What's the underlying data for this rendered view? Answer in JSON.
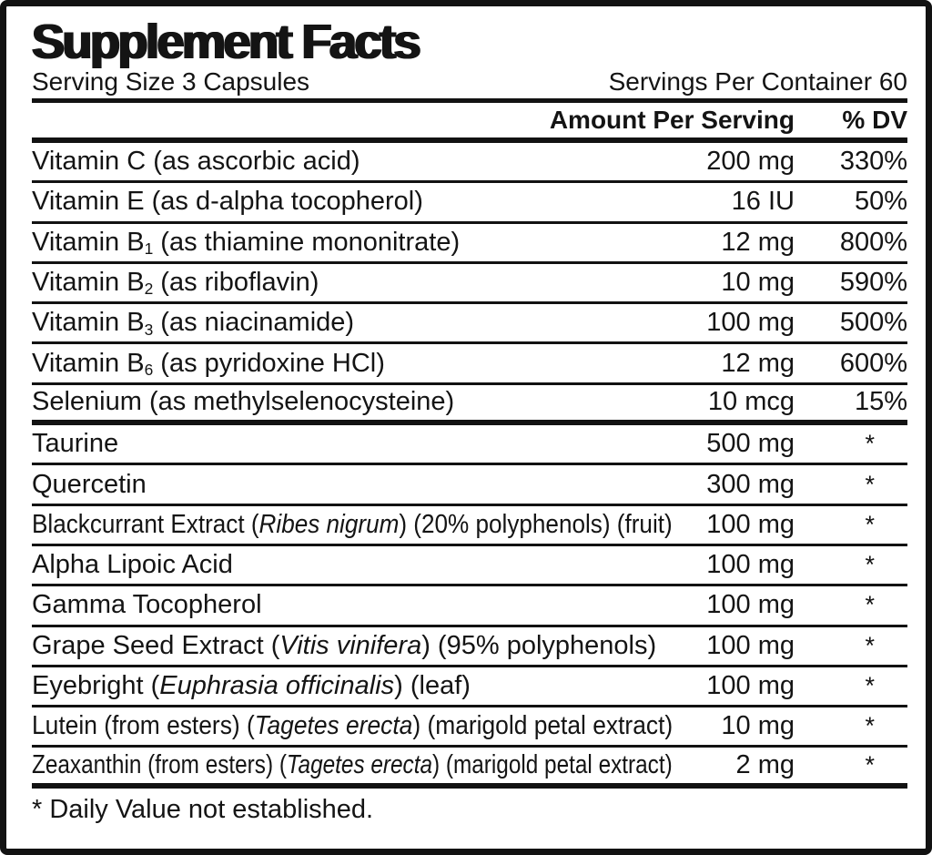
{
  "title": "Supplement Facts",
  "serving": {
    "size": "Serving Size 3 Capsules",
    "per_container": "Servings Per Container 60"
  },
  "columns": {
    "amount": "Amount Per Serving",
    "dv": "% DV"
  },
  "rows": [
    {
      "name": [
        {
          "t": "Vitamin C (as ascorbic acid)"
        }
      ],
      "amount": "200 mg",
      "dv": "330%"
    },
    {
      "name": [
        {
          "t": "Vitamin E (as d-alpha tocopherol)"
        }
      ],
      "amount": "16 IU",
      "dv": "50%"
    },
    {
      "name": [
        {
          "t": "Vitamin B"
        },
        {
          "t": "1",
          "sub": true
        },
        {
          "t": " (as thiamine mononitrate)"
        }
      ],
      "amount": "12 mg",
      "dv": "800%"
    },
    {
      "name": [
        {
          "t": "Vitamin B"
        },
        {
          "t": "2",
          "sub": true
        },
        {
          "t": " (as riboflavin)"
        }
      ],
      "amount": "10 mg",
      "dv": "590%"
    },
    {
      "name": [
        {
          "t": "Vitamin B"
        },
        {
          "t": "3",
          "sub": true
        },
        {
          "t": " (as niacinamide)"
        }
      ],
      "amount": "100 mg",
      "dv": "500%"
    },
    {
      "name": [
        {
          "t": "Vitamin B"
        },
        {
          "t": "6",
          "sub": true
        },
        {
          "t": " (as pyridoxine HCl)"
        }
      ],
      "amount": "12 mg",
      "dv": "600%"
    },
    {
      "name": [
        {
          "t": "Selenium (as methylselenocysteine)"
        }
      ],
      "amount": "10 mcg",
      "dv": "15%",
      "divider": "thick"
    },
    {
      "name": [
        {
          "t": "Taurine"
        }
      ],
      "amount": "500 mg",
      "dv": "*"
    },
    {
      "name": [
        {
          "t": "Quercetin"
        }
      ],
      "amount": "300 mg",
      "dv": "*"
    },
    {
      "name": [
        {
          "t": "Blackcurrant Extract ("
        },
        {
          "t": "Ribes nigrum",
          "italic": true
        },
        {
          "t": ") (20% polyphenols) (fruit)"
        }
      ],
      "amount": "100 mg",
      "dv": "*"
    },
    {
      "name": [
        {
          "t": "Alpha Lipoic Acid"
        }
      ],
      "amount": "100 mg",
      "dv": "*"
    },
    {
      "name": [
        {
          "t": "Gamma Tocopherol"
        }
      ],
      "amount": "100 mg",
      "dv": "*"
    },
    {
      "name": [
        {
          "t": "Grape Seed Extract ("
        },
        {
          "t": "Vitis vinifera",
          "italic": true
        },
        {
          "t": ") (95% polyphenols)"
        }
      ],
      "amount": "100 mg",
      "dv": "*"
    },
    {
      "name": [
        {
          "t": "Eyebright ("
        },
        {
          "t": "Euphrasia officinalis",
          "italic": true
        },
        {
          "t": ") (leaf)"
        }
      ],
      "amount": "100 mg",
      "dv": "*"
    },
    {
      "name": [
        {
          "t": "Lutein (from esters) ("
        },
        {
          "t": "Tagetes erecta",
          "italic": true
        },
        {
          "t": ") (marigold petal extract)"
        }
      ],
      "amount": "10 mg",
      "dv": "*"
    },
    {
      "name": [
        {
          "t": "Zeaxanthin (from esters) ("
        },
        {
          "t": "Tagetes erecta",
          "italic": true
        },
        {
          "t": ") (marigold petal extract)"
        }
      ],
      "amount": "2 mg",
      "dv": "*",
      "divider": "thick"
    }
  ],
  "footnote": "* Daily Value not established.",
  "colors": {
    "text": "#141414",
    "border": "#121212",
    "background": "#ffffff"
  }
}
